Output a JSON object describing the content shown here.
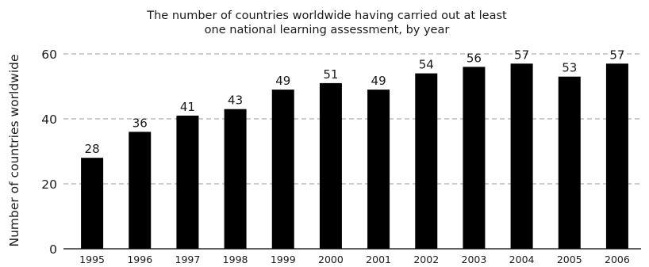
{
  "chart_data": {
    "type": "bar",
    "title_lines": [
      "The number of countries worldwide having carried out at least",
      "one national learning assessment, by year"
    ],
    "xlabel": "",
    "ylabel": "Number of countries worldwide",
    "categories": [
      "1995",
      "1996",
      "1997",
      "1998",
      "1999",
      "2000",
      "2001",
      "2002",
      "2003",
      "2004",
      "2005",
      "2006"
    ],
    "values": [
      28,
      36,
      41,
      43,
      49,
      51,
      49,
      54,
      56,
      57,
      53,
      57
    ],
    "ylim": [
      0,
      60
    ],
    "yticks": [
      0,
      20,
      40,
      60
    ],
    "grid": "horizontal dashed",
    "legend": "none",
    "colors": {
      "bar": "#000000",
      "grid": "#999999",
      "axis": "#000000"
    }
  }
}
